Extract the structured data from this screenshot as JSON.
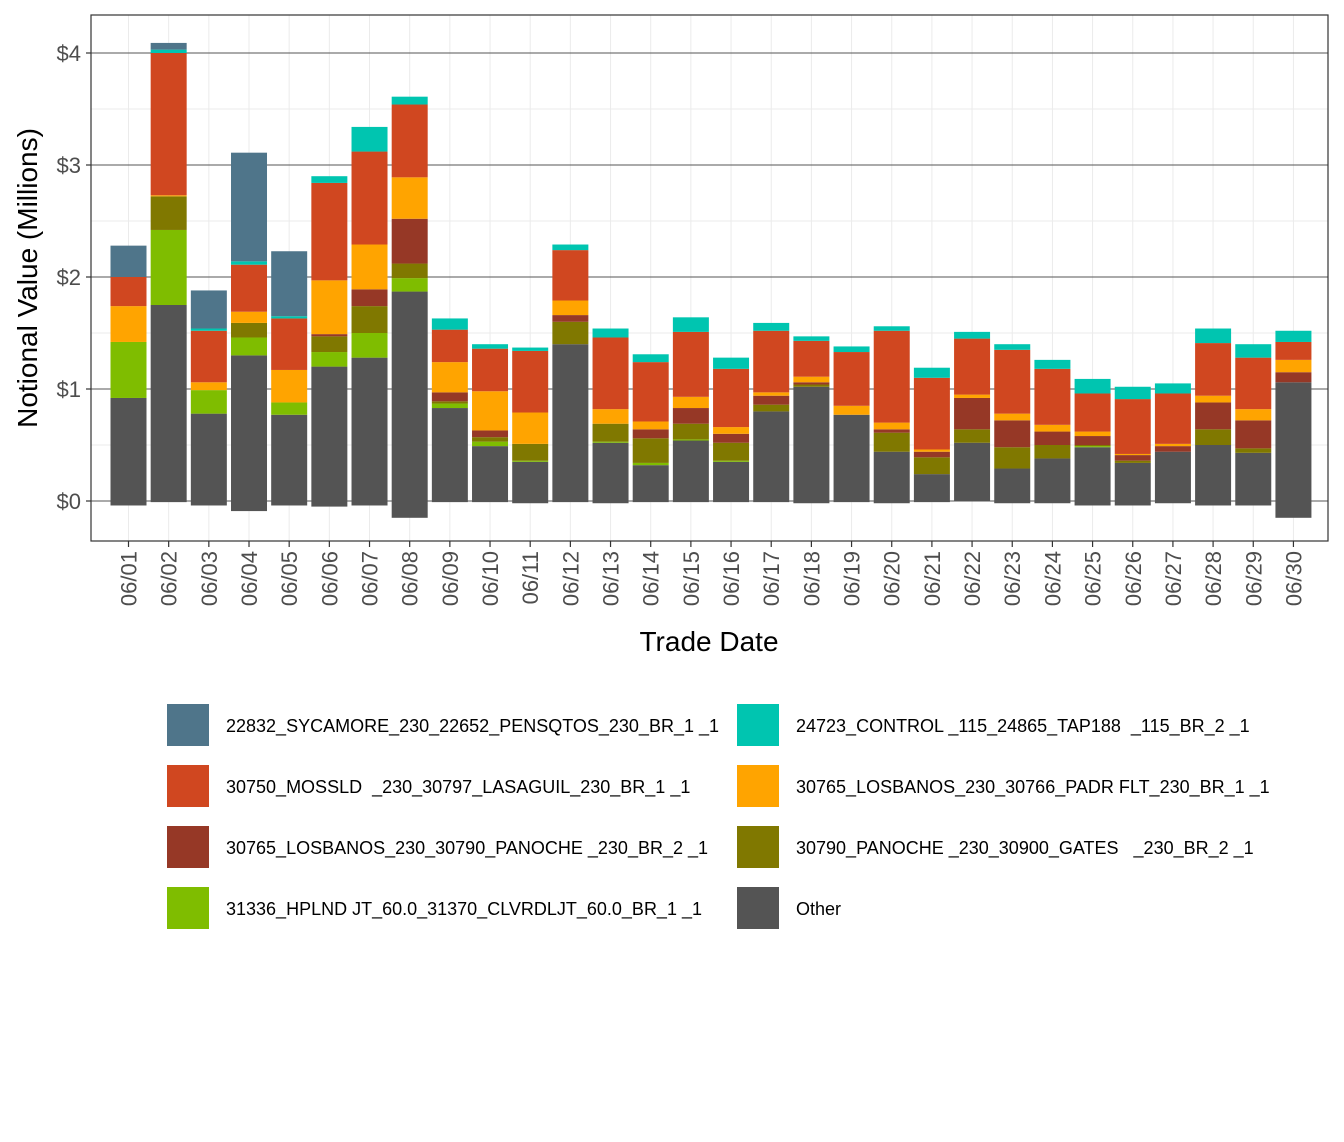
{
  "chart_data": {
    "type": "bar",
    "stacked": true,
    "xlabel": "Trade Date",
    "ylabel": "Notional Value (Millions)",
    "ylim": [
      -0.25,
      4.35
    ],
    "yticks": [
      0,
      1,
      2,
      3,
      4
    ],
    "ytick_labels": [
      "$0",
      "$1",
      "$2",
      "$3",
      "$4"
    ],
    "grid": true,
    "legend_position": "bottom",
    "categories": [
      "06/01",
      "06/02",
      "06/03",
      "06/04",
      "06/05",
      "06/06",
      "06/07",
      "06/08",
      "06/09",
      "06/10",
      "06/11",
      "06/12",
      "06/13",
      "06/14",
      "06/15",
      "06/16",
      "06/17",
      "06/18",
      "06/19",
      "06/20",
      "06/21",
      "06/22",
      "06/23",
      "06/24",
      "06/25",
      "06/26",
      "06/27",
      "06/28",
      "06/29",
      "06/30"
    ],
    "series": [
      {
        "name": "Other",
        "color": "#545454",
        "values": [
          0.92,
          1.75,
          0.78,
          1.3,
          0.77,
          1.2,
          1.28,
          1.87,
          0.83,
          0.49,
          0.35,
          1.4,
          0.52,
          0.32,
          0.54,
          0.35,
          0.8,
          1.02,
          0.77,
          0.44,
          0.24,
          0.52,
          0.29,
          0.38,
          0.48,
          0.34,
          0.44,
          0.5,
          0.43,
          1.06
        ],
        "negatives": [
          -0.04,
          -0.01,
          -0.04,
          -0.09,
          -0.04,
          -0.05,
          -0.04,
          -0.15,
          -0.01,
          -0.01,
          -0.02,
          -0.01,
          -0.02,
          -0.01,
          -0.01,
          -0.01,
          -0.01,
          -0.02,
          -0.01,
          -0.02,
          -0.01,
          0,
          -0.02,
          -0.02,
          -0.04,
          -0.04,
          -0.02,
          -0.04,
          -0.04,
          -0.15
        ]
      },
      {
        "name": "31336_HPLND JT_60.0_31370_CLVRDLJT_60.0_BR_1 _1",
        "color": "#7FBD00",
        "values": [
          0.5,
          0.67,
          0.21,
          0.16,
          0.11,
          0.13,
          0.22,
          0.12,
          0.04,
          0.04,
          0.01,
          0,
          0.01,
          0.02,
          0.01,
          0.01,
          0,
          0,
          0,
          0,
          0,
          0,
          0,
          0,
          0.01,
          0,
          0,
          0,
          0,
          0
        ]
      },
      {
        "name": "30790_PANOCHE _230_30900_GATES   _230_BR_2 _1",
        "color": "#807800",
        "values": [
          0,
          0.3,
          0,
          0.13,
          0,
          0.14,
          0.24,
          0.13,
          0.02,
          0.04,
          0.15,
          0.2,
          0.16,
          0.22,
          0.14,
          0.16,
          0.06,
          0.02,
          0,
          0.17,
          0.15,
          0.12,
          0.19,
          0.12,
          0.01,
          0.02,
          0,
          0.14,
          0.04,
          0
        ]
      },
      {
        "name": "30765_LOSBANOS_230_30790_PANOCHE _230_BR_2 _1",
        "color": "#963826",
        "values": [
          0,
          0,
          0,
          0,
          0,
          0.02,
          0.15,
          0.4,
          0.08,
          0.06,
          0,
          0.06,
          0,
          0.08,
          0.14,
          0.08,
          0.08,
          0.02,
          0,
          0.03,
          0.05,
          0.28,
          0.24,
          0.12,
          0.08,
          0.05,
          0.05,
          0.24,
          0.25,
          0.09
        ]
      },
      {
        "name": "30765_LOSBANOS_230_30766_PADR FLT_230_BR_1 _1",
        "color": "#FFA400",
        "values": [
          0.32,
          0.01,
          0.07,
          0.1,
          0.29,
          0.48,
          0.4,
          0.37,
          0.27,
          0.35,
          0.28,
          0.13,
          0.13,
          0.07,
          0.1,
          0.06,
          0.03,
          0.05,
          0.08,
          0.06,
          0.02,
          0.03,
          0.06,
          0.06,
          0.04,
          0.01,
          0.02,
          0.06,
          0.1,
          0.11
        ]
      },
      {
        "name": "30750_MOSSLD  _230_30797_LASAGUIL_230_BR_1 _1",
        "color": "#D04720",
        "values": [
          0.26,
          1.27,
          0.46,
          0.42,
          0.46,
          0.87,
          0.83,
          0.65,
          0.29,
          0.38,
          0.55,
          0.45,
          0.64,
          0.53,
          0.58,
          0.52,
          0.55,
          0.32,
          0.48,
          0.82,
          0.64,
          0.5,
          0.57,
          0.5,
          0.34,
          0.49,
          0.45,
          0.47,
          0.46,
          0.16
        ]
      },
      {
        "name": "24723_CONTROL _115_24865_TAP188  _115_BR_2 _1",
        "color": "#00C5B0",
        "values": [
          0,
          0.03,
          0.02,
          0.03,
          0.02,
          0.06,
          0.22,
          0.07,
          0.1,
          0.04,
          0.03,
          0.05,
          0.08,
          0.07,
          0.13,
          0.1,
          0.07,
          0.04,
          0.05,
          0.04,
          0.09,
          0.06,
          0.05,
          0.08,
          0.13,
          0.11,
          0.09,
          0.13,
          0.12,
          0.1
        ]
      },
      {
        "name": "22832_SYCAMORE_230_22652_PENSQTOS_230_BR_1 _1",
        "color": "#4F758A",
        "values": [
          0.28,
          0.06,
          0.34,
          0.97,
          0.58,
          0,
          0,
          0,
          0,
          0,
          0,
          0,
          0,
          0,
          0,
          0,
          0,
          0,
          0,
          0,
          0,
          0,
          0,
          0,
          0,
          0,
          0,
          0,
          0,
          0
        ]
      }
    ],
    "legend_order": [
      "22832_SYCAMORE_230_22652_PENSQTOS_230_BR_1 _1",
      "24723_CONTROL _115_24865_TAP188  _115_BR_2 _1",
      "30750_MOSSLD  _230_30797_LASAGUIL_230_BR_1 _1",
      "30765_LOSBANOS_230_30766_PADR FLT_230_BR_1 _1",
      "30765_LOSBANOS_230_30790_PANOCHE _230_BR_2 _1",
      "30790_PANOCHE _230_30900_GATES   _230_BR_2 _1",
      "31336_HPLND JT_60.0_31370_CLVRDLJT_60.0_BR_1 _1",
      "Other"
    ]
  }
}
